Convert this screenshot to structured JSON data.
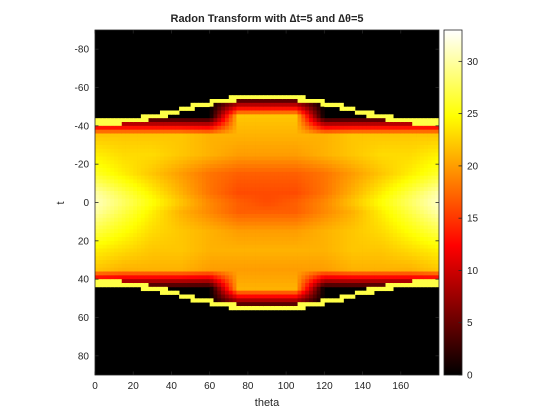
{
  "chart_data": {
    "type": "heatmap",
    "title": "Radon Transform with ∆t=5 and ∆θ=5",
    "xlabel": "theta",
    "ylabel": "t",
    "xlim": [
      0,
      180
    ],
    "ylim": [
      -90,
      90
    ],
    "y_direction": "reversed",
    "x_ticks": [
      "0",
      "20",
      "40",
      "60",
      "80",
      "100",
      "120",
      "140",
      "160"
    ],
    "y_ticks": [
      "-80",
      "-60",
      "-40",
      "-20",
      "0",
      "20",
      "40",
      "60",
      "80"
    ],
    "colormap": "hot",
    "colorbar": {
      "range": [
        0,
        33
      ],
      "ticks": [
        "0",
        "5",
        "10",
        "15",
        "20",
        "25",
        "30"
      ],
      "location": "right"
    },
    "support_boundary": {
      "theta": [
        0,
        10,
        20,
        30,
        40,
        50,
        60,
        70,
        80,
        90,
        100,
        110,
        120,
        130,
        140,
        150,
        160,
        170,
        179
      ],
      "t_half_width": [
        43,
        43,
        44,
        46,
        48,
        51,
        53,
        55,
        56,
        56,
        56,
        55,
        53,
        51,
        48,
        46,
        44,
        43,
        43
      ]
    },
    "intensity_samples": {
      "theta": [
        0,
        15,
        30,
        45,
        60,
        75,
        90,
        105,
        120,
        135,
        150,
        165,
        179
      ],
      "t": [
        -55,
        -45,
        -35,
        -25,
        -15,
        -5,
        0,
        5,
        15,
        25,
        35,
        45,
        55
      ],
      "values": [
        [
          0,
          0,
          0,
          0,
          0,
          0,
          0,
          0,
          0,
          0,
          0,
          0,
          0
        ],
        [
          0,
          0,
          0,
          0,
          0,
          22,
          22,
          22,
          0,
          0,
          0,
          0,
          0
        ],
        [
          22,
          22,
          22,
          22,
          21,
          21,
          21,
          21,
          21,
          22,
          22,
          22,
          22
        ],
        [
          24,
          23,
          23,
          22,
          21,
          20,
          20,
          20,
          21,
          22,
          23,
          23,
          24
        ],
        [
          26,
          24,
          22,
          20,
          18,
          17,
          17,
          17,
          18,
          20,
          22,
          24,
          26
        ],
        [
          30,
          27,
          24,
          21,
          18,
          16,
          16,
          16,
          18,
          21,
          24,
          27,
          30
        ],
        [
          31,
          28,
          25,
          22,
          19,
          17,
          16,
          17,
          19,
          22,
          25,
          28,
          31
        ],
        [
          30,
          27,
          24,
          21,
          19,
          17,
          17,
          17,
          19,
          21,
          24,
          27,
          30
        ],
        [
          27,
          25,
          23,
          22,
          21,
          20,
          20,
          20,
          21,
          22,
          23,
          25,
          27
        ],
        [
          24,
          23,
          22,
          22,
          21,
          21,
          21,
          21,
          21,
          22,
          22,
          23,
          24
        ],
        [
          22,
          21,
          21,
          21,
          20,
          20,
          20,
          20,
          20,
          21,
          21,
          21,
          22
        ],
        [
          0,
          0,
          0,
          0,
          0,
          21,
          21,
          21,
          0,
          0,
          0,
          0,
          0
        ],
        [
          0,
          0,
          0,
          0,
          0,
          0,
          0,
          0,
          0,
          0,
          0,
          0,
          0
        ]
      ]
    }
  }
}
